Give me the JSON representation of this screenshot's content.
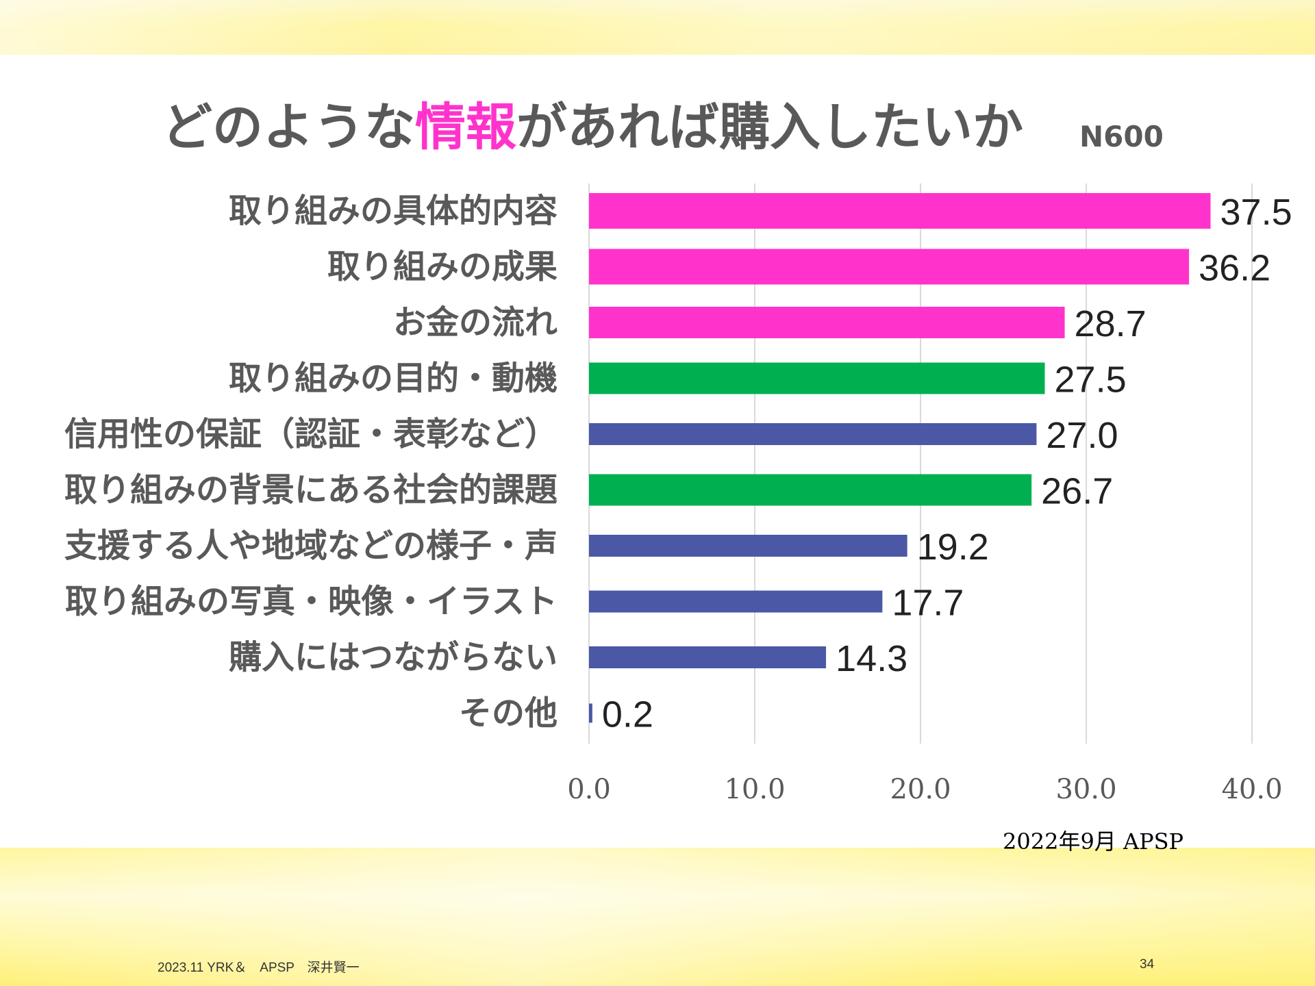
{
  "slide": {
    "title_before": "どのような",
    "title_highlight": "情報",
    "title_after": "があれば購入したいか",
    "n_label": "N600",
    "source": "2022年9月 APSP",
    "footer_left": "2023.11 YRK＆　APSP　深井賢一",
    "page_number": "34"
  },
  "colors": {
    "magenta": "#ff33cc",
    "green": "#00b050",
    "blue": "#4a58a6",
    "grid": "#d9d9d9",
    "text": "#595959"
  },
  "chart_data": {
    "type": "bar",
    "orientation": "horizontal",
    "categories": [
      "取り組みの具体的内容",
      "取り組みの成果",
      "お金の流れ",
      "取り組みの目的・動機",
      "信用性の保証（認証・表彰など）",
      "取り組みの背景にある社会的課題",
      "支援する人や地域などの様子・声",
      "取り組みの写真・映像・イラスト",
      "購入にはつながらない",
      "その他"
    ],
    "values": [
      37.5,
      36.2,
      28.7,
      27.5,
      27.0,
      26.7,
      19.2,
      17.7,
      14.3,
      0.2
    ],
    "value_labels": [
      "37.5",
      "36.2",
      "28.7",
      "27.5",
      "27.0",
      "26.7",
      "19.2",
      "17.7",
      "14.3",
      "0.2"
    ],
    "bar_colors": [
      "magenta",
      "magenta",
      "magenta",
      "green",
      "blue",
      "green",
      "blue",
      "blue",
      "blue",
      "blue"
    ],
    "xlim": [
      0,
      40
    ],
    "x_ticks": [
      0,
      10,
      20,
      30,
      40
    ],
    "x_tick_labels": [
      "0.0",
      "10.0",
      "20.0",
      "30.0",
      "40.0"
    ],
    "grid": true
  }
}
